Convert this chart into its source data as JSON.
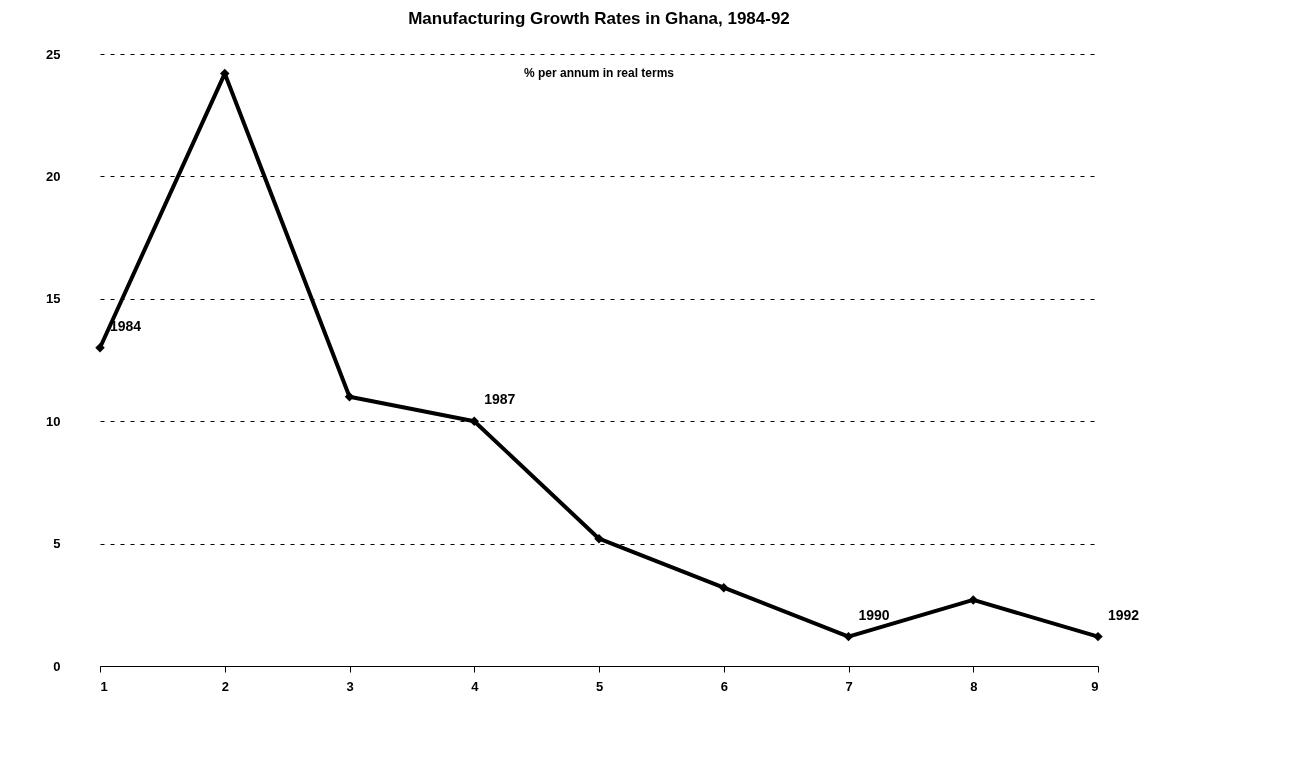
{
  "chart_data": {
    "type": "line",
    "title": "Manufacturing Growth Rates in Ghana, 1984-92",
    "subtitle": "% per annum in real terms",
    "x": [
      1,
      2,
      3,
      4,
      5,
      6,
      7,
      8,
      9
    ],
    "series": [
      {
        "color": "#000000",
        "values": [
          13,
          24.2,
          11,
          10,
          5.2,
          3.2,
          1.2,
          2.7,
          1.2
        ]
      }
    ],
    "xlim": [
      1,
      9
    ],
    "xticks": [
      1,
      2,
      3,
      4,
      5,
      6,
      7,
      8,
      9
    ],
    "ylim": [
      0,
      25
    ],
    "yticks": [
      0,
      5,
      10,
      15,
      20,
      25
    ],
    "grid": "y",
    "marker": "diamond",
    "line_style": "solid",
    "annotations": [
      {
        "text": "1984",
        "x": 1,
        "y": 13
      },
      {
        "text": "1987",
        "x": 4,
        "y": 10
      },
      {
        "text": "1990",
        "x": 7,
        "y": 1.2
      },
      {
        "text": "1992",
        "x": 9,
        "y": 1.2
      }
    ]
  }
}
